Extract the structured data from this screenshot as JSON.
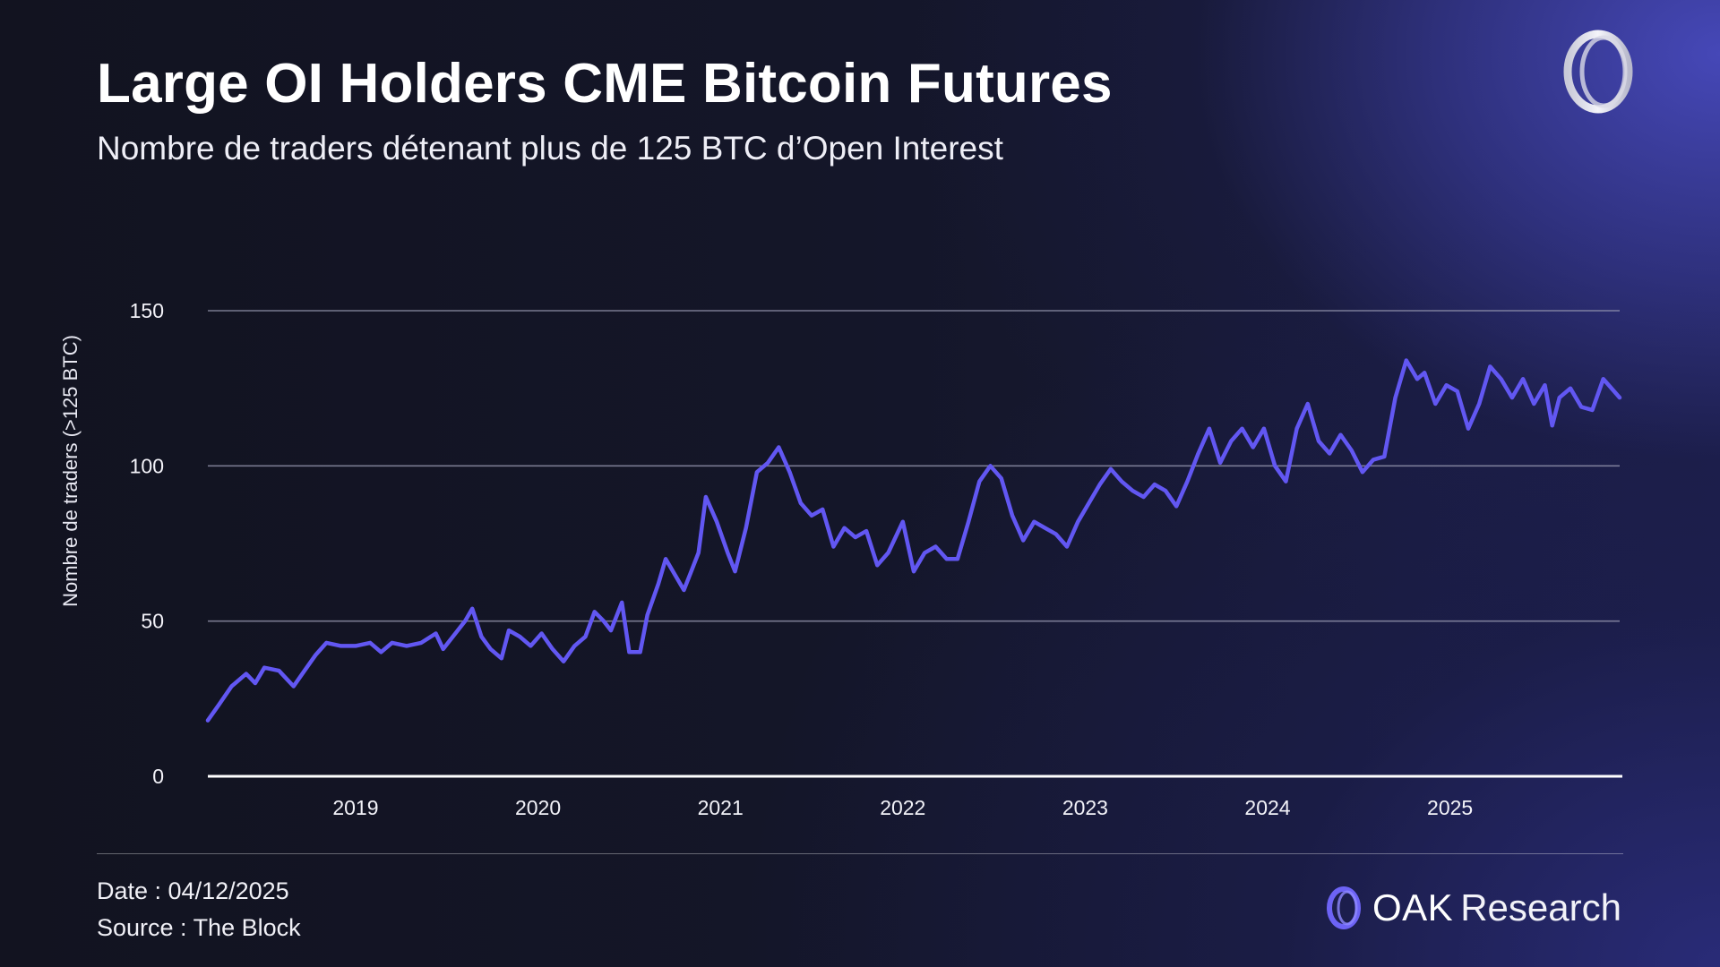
{
  "header": {
    "title": "Large OI Holders CME Bitcoin Futures",
    "subtitle": "Nombre de traders détenant plus de 125 BTC d’Open Interest"
  },
  "footer": {
    "date": "Date : 04/12/2025",
    "source": "Source : The Block"
  },
  "brand": {
    "name": "OAK",
    "suffix": "Research",
    "logo_icon": "oak-ring-icon"
  },
  "colors": {
    "line": "#6257f2",
    "grid": "#9a9bb3",
    "baseline": "#ffffff",
    "logo_accent": "#6d63f5"
  },
  "chart_data": {
    "type": "line",
    "title": "Large OI Holders CME Bitcoin Futures",
    "subtitle": "Nombre de traders détenant plus de 125 BTC d’Open Interest",
    "xlabel": "",
    "ylabel": "Nombre de traders (>125 BTC)",
    "ylim": [
      0,
      150
    ],
    "yticks": [
      0,
      50,
      100,
      150
    ],
    "xlim": [
      2018.19,
      2025.93
    ],
    "xticks": [
      2019,
      2020,
      2021,
      2022,
      2023,
      2024,
      2025
    ],
    "grid": "horizontal",
    "series": [
      {
        "values": [
          [
            2018.19,
            18
          ],
          [
            2018.25,
            23
          ],
          [
            2018.32,
            29
          ],
          [
            2018.4,
            33
          ],
          [
            2018.45,
            30
          ],
          [
            2018.5,
            35
          ],
          [
            2018.58,
            34
          ],
          [
            2018.66,
            29
          ],
          [
            2018.72,
            34
          ],
          [
            2018.78,
            39
          ],
          [
            2018.84,
            43
          ],
          [
            2018.92,
            42
          ],
          [
            2019.0,
            42
          ],
          [
            2019.08,
            43
          ],
          [
            2019.14,
            40
          ],
          [
            2019.2,
            43
          ],
          [
            2019.28,
            42
          ],
          [
            2019.36,
            43
          ],
          [
            2019.44,
            46
          ],
          [
            2019.48,
            41
          ],
          [
            2019.52,
            44
          ],
          [
            2019.6,
            50
          ],
          [
            2019.64,
            54
          ],
          [
            2019.69,
            45
          ],
          [
            2019.74,
            41
          ],
          [
            2019.8,
            38
          ],
          [
            2019.84,
            47
          ],
          [
            2019.9,
            45
          ],
          [
            2019.96,
            42
          ],
          [
            2020.02,
            46
          ],
          [
            2020.08,
            41
          ],
          [
            2020.14,
            37
          ],
          [
            2020.2,
            42
          ],
          [
            2020.26,
            45
          ],
          [
            2020.31,
            53
          ],
          [
            2020.36,
            50
          ],
          [
            2020.4,
            47
          ],
          [
            2020.46,
            56
          ],
          [
            2020.5,
            40
          ],
          [
            2020.56,
            40
          ],
          [
            2020.6,
            52
          ],
          [
            2020.66,
            62
          ],
          [
            2020.7,
            70
          ],
          [
            2020.76,
            64
          ],
          [
            2020.8,
            60
          ],
          [
            2020.84,
            66
          ],
          [
            2020.88,
            72
          ],
          [
            2020.92,
            90
          ],
          [
            2020.98,
            82
          ],
          [
            2021.04,
            72
          ],
          [
            2021.08,
            66
          ],
          [
            2021.14,
            80
          ],
          [
            2021.2,
            98
          ],
          [
            2021.26,
            101
          ],
          [
            2021.32,
            106
          ],
          [
            2021.38,
            98
          ],
          [
            2021.44,
            88
          ],
          [
            2021.5,
            84
          ],
          [
            2021.56,
            86
          ],
          [
            2021.62,
            74
          ],
          [
            2021.68,
            80
          ],
          [
            2021.74,
            77
          ],
          [
            2021.8,
            79
          ],
          [
            2021.86,
            68
          ],
          [
            2021.92,
            72
          ],
          [
            2022.0,
            82
          ],
          [
            2022.06,
            66
          ],
          [
            2022.12,
            72
          ],
          [
            2022.18,
            74
          ],
          [
            2022.24,
            70
          ],
          [
            2022.3,
            70
          ],
          [
            2022.36,
            82
          ],
          [
            2022.42,
            95
          ],
          [
            2022.48,
            100
          ],
          [
            2022.54,
            96
          ],
          [
            2022.6,
            84
          ],
          [
            2022.66,
            76
          ],
          [
            2022.72,
            82
          ],
          [
            2022.78,
            80
          ],
          [
            2022.84,
            78
          ],
          [
            2022.9,
            74
          ],
          [
            2022.96,
            82
          ],
          [
            2023.02,
            88
          ],
          [
            2023.08,
            94
          ],
          [
            2023.14,
            99
          ],
          [
            2023.2,
            95
          ],
          [
            2023.26,
            92
          ],
          [
            2023.32,
            90
          ],
          [
            2023.38,
            94
          ],
          [
            2023.44,
            92
          ],
          [
            2023.5,
            87
          ],
          [
            2023.56,
            95
          ],
          [
            2023.62,
            104
          ],
          [
            2023.68,
            112
          ],
          [
            2023.74,
            101
          ],
          [
            2023.8,
            108
          ],
          [
            2023.86,
            112
          ],
          [
            2023.92,
            106
          ],
          [
            2023.98,
            112
          ],
          [
            2024.04,
            100
          ],
          [
            2024.1,
            95
          ],
          [
            2024.16,
            112
          ],
          [
            2024.22,
            120
          ],
          [
            2024.28,
            108
          ],
          [
            2024.34,
            104
          ],
          [
            2024.4,
            110
          ],
          [
            2024.46,
            105
          ],
          [
            2024.52,
            98
          ],
          [
            2024.58,
            102
          ],
          [
            2024.64,
            103
          ],
          [
            2024.7,
            122
          ],
          [
            2024.76,
            134
          ],
          [
            2024.82,
            128
          ],
          [
            2024.86,
            130
          ],
          [
            2024.92,
            120
          ],
          [
            2024.98,
            126
          ],
          [
            2025.04,
            124
          ],
          [
            2025.1,
            112
          ],
          [
            2025.16,
            120
          ],
          [
            2025.22,
            132
          ],
          [
            2025.28,
            128
          ],
          [
            2025.34,
            122
          ],
          [
            2025.4,
            128
          ],
          [
            2025.46,
            120
          ],
          [
            2025.52,
            126
          ],
          [
            2025.56,
            113
          ],
          [
            2025.6,
            122
          ],
          [
            2025.66,
            125
          ],
          [
            2025.72,
            119
          ],
          [
            2025.78,
            118
          ],
          [
            2025.84,
            128
          ],
          [
            2025.9,
            124
          ],
          [
            2025.93,
            122
          ]
        ]
      }
    ]
  }
}
